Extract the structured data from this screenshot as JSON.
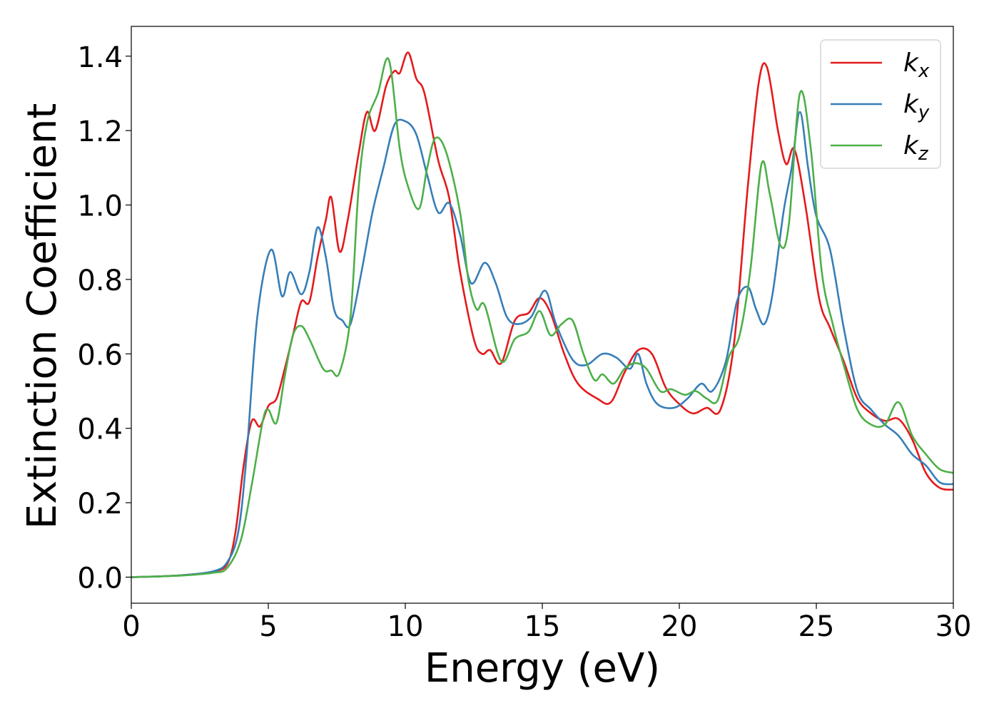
{
  "chart_data": {
    "type": "line",
    "xlabel": "Energy (eV)",
    "ylabel": "Extinction Coefficient",
    "xlim": [
      0,
      30
    ],
    "ylim": [
      -0.07,
      1.48
    ],
    "xticks": [
      0,
      5,
      10,
      15,
      20,
      25,
      30
    ],
    "xtick_labels": [
      "0",
      "5",
      "10",
      "15",
      "20",
      "25",
      "30"
    ],
    "yticks": [
      0.0,
      0.2,
      0.4,
      0.6,
      0.8,
      1.0,
      1.2,
      1.4
    ],
    "ytick_labels": [
      "0.0",
      "0.2",
      "0.4",
      "0.6",
      "0.8",
      "1.0",
      "1.2",
      "1.4"
    ],
    "grid": false,
    "legend_position": "top-right",
    "series": [
      {
        "name": "k",
        "subscript": "x",
        "color": "#e41a1c",
        "points": [
          [
            0,
            0.0
          ],
          [
            1,
            0.002
          ],
          [
            2,
            0.006
          ],
          [
            3,
            0.015
          ],
          [
            3.5,
            0.035
          ],
          [
            3.8,
            0.12
          ],
          [
            4.1,
            0.3
          ],
          [
            4.4,
            0.42
          ],
          [
            4.7,
            0.405
          ],
          [
            5.0,
            0.46
          ],
          [
            5.3,
            0.48
          ],
          [
            5.6,
            0.56
          ],
          [
            5.9,
            0.65
          ],
          [
            6.2,
            0.74
          ],
          [
            6.5,
            0.74
          ],
          [
            6.8,
            0.86
          ],
          [
            7.1,
            0.96
          ],
          [
            7.3,
            1.02
          ],
          [
            7.6,
            0.875
          ],
          [
            7.9,
            0.96
          ],
          [
            8.3,
            1.14
          ],
          [
            8.6,
            1.25
          ],
          [
            8.9,
            1.2
          ],
          [
            9.3,
            1.32
          ],
          [
            9.6,
            1.36
          ],
          [
            9.8,
            1.355
          ],
          [
            10.1,
            1.41
          ],
          [
            10.4,
            1.34
          ],
          [
            10.7,
            1.3
          ],
          [
            11.2,
            1.12
          ],
          [
            11.6,
            1.02
          ],
          [
            12.0,
            0.82
          ],
          [
            12.5,
            0.64
          ],
          [
            12.8,
            0.6
          ],
          [
            13.1,
            0.61
          ],
          [
            13.5,
            0.575
          ],
          [
            14.0,
            0.69
          ],
          [
            14.5,
            0.71
          ],
          [
            14.9,
            0.75
          ],
          [
            15.3,
            0.71
          ],
          [
            15.8,
            0.6
          ],
          [
            16.3,
            0.52
          ],
          [
            17.0,
            0.48
          ],
          [
            17.5,
            0.47
          ],
          [
            18.0,
            0.55
          ],
          [
            18.5,
            0.61
          ],
          [
            19.0,
            0.6
          ],
          [
            19.5,
            0.51
          ],
          [
            20.0,
            0.465
          ],
          [
            20.5,
            0.44
          ],
          [
            21.0,
            0.455
          ],
          [
            21.5,
            0.45
          ],
          [
            22.0,
            0.63
          ],
          [
            22.5,
            1.05
          ],
          [
            22.9,
            1.33
          ],
          [
            23.2,
            1.37
          ],
          [
            23.6,
            1.2
          ],
          [
            23.9,
            1.11
          ],
          [
            24.2,
            1.15
          ],
          [
            24.6,
            1.0
          ],
          [
            25.1,
            0.75
          ],
          [
            25.5,
            0.67
          ],
          [
            26.0,
            0.58
          ],
          [
            26.5,
            0.48
          ],
          [
            27.0,
            0.44
          ],
          [
            27.5,
            0.42
          ],
          [
            28.0,
            0.425
          ],
          [
            28.5,
            0.37
          ],
          [
            29.0,
            0.28
          ],
          [
            29.5,
            0.24
          ],
          [
            30.0,
            0.235
          ]
        ]
      },
      {
        "name": "k",
        "subscript": "y",
        "color": "#377eb8",
        "points": [
          [
            0,
            0.0
          ],
          [
            1,
            0.002
          ],
          [
            2,
            0.006
          ],
          [
            3,
            0.016
          ],
          [
            3.5,
            0.04
          ],
          [
            3.9,
            0.12
          ],
          [
            4.2,
            0.32
          ],
          [
            4.6,
            0.7
          ],
          [
            5.1,
            0.88
          ],
          [
            5.5,
            0.755
          ],
          [
            5.8,
            0.82
          ],
          [
            6.2,
            0.76
          ],
          [
            6.5,
            0.82
          ],
          [
            6.8,
            0.94
          ],
          [
            7.1,
            0.86
          ],
          [
            7.4,
            0.72
          ],
          [
            7.7,
            0.69
          ],
          [
            8.0,
            0.68
          ],
          [
            8.4,
            0.82
          ],
          [
            8.8,
            0.98
          ],
          [
            9.2,
            1.1
          ],
          [
            9.6,
            1.215
          ],
          [
            10.0,
            1.225
          ],
          [
            10.4,
            1.19
          ],
          [
            10.8,
            1.08
          ],
          [
            11.2,
            0.98
          ],
          [
            11.6,
            1.005
          ],
          [
            12.0,
            0.92
          ],
          [
            12.4,
            0.79
          ],
          [
            12.9,
            0.845
          ],
          [
            13.3,
            0.79
          ],
          [
            13.7,
            0.7
          ],
          [
            14.1,
            0.68
          ],
          [
            14.6,
            0.7
          ],
          [
            15.1,
            0.77
          ],
          [
            15.5,
            0.68
          ],
          [
            16.1,
            0.585
          ],
          [
            16.6,
            0.57
          ],
          [
            17.2,
            0.6
          ],
          [
            17.7,
            0.59
          ],
          [
            18.2,
            0.56
          ],
          [
            18.5,
            0.6
          ],
          [
            18.8,
            0.52
          ],
          [
            19.2,
            0.465
          ],
          [
            19.8,
            0.455
          ],
          [
            20.3,
            0.48
          ],
          [
            20.8,
            0.52
          ],
          [
            21.2,
            0.5
          ],
          [
            21.7,
            0.58
          ],
          [
            22.1,
            0.74
          ],
          [
            22.5,
            0.78
          ],
          [
            22.8,
            0.72
          ],
          [
            23.1,
            0.68
          ],
          [
            23.4,
            0.76
          ],
          [
            23.8,
            0.98
          ],
          [
            24.1,
            1.1
          ],
          [
            24.4,
            1.25
          ],
          [
            24.7,
            1.1
          ],
          [
            25.0,
            0.97
          ],
          [
            25.5,
            0.88
          ],
          [
            26.0,
            0.67
          ],
          [
            26.5,
            0.5
          ],
          [
            27.0,
            0.45
          ],
          [
            27.5,
            0.41
          ],
          [
            28.0,
            0.38
          ],
          [
            28.5,
            0.33
          ],
          [
            29.0,
            0.3
          ],
          [
            29.5,
            0.255
          ],
          [
            30.0,
            0.25
          ]
        ]
      },
      {
        "name": "k",
        "subscript": "z",
        "color": "#4daf4a",
        "points": [
          [
            0,
            0.0
          ],
          [
            1,
            0.002
          ],
          [
            2,
            0.005
          ],
          [
            3,
            0.012
          ],
          [
            3.5,
            0.025
          ],
          [
            4.0,
            0.1
          ],
          [
            4.4,
            0.25
          ],
          [
            4.8,
            0.42
          ],
          [
            5.0,
            0.45
          ],
          [
            5.3,
            0.415
          ],
          [
            5.6,
            0.54
          ],
          [
            5.9,
            0.65
          ],
          [
            6.2,
            0.675
          ],
          [
            6.5,
            0.64
          ],
          [
            7.0,
            0.56
          ],
          [
            7.3,
            0.555
          ],
          [
            7.6,
            0.55
          ],
          [
            8.0,
            0.7
          ],
          [
            8.3,
            1.05
          ],
          [
            8.6,
            1.22
          ],
          [
            9.0,
            1.3
          ],
          [
            9.4,
            1.39
          ],
          [
            9.8,
            1.15
          ],
          [
            10.1,
            1.05
          ],
          [
            10.5,
            0.99
          ],
          [
            10.8,
            1.1
          ],
          [
            11.1,
            1.18
          ],
          [
            11.5,
            1.14
          ],
          [
            12.0,
            0.98
          ],
          [
            12.3,
            0.8
          ],
          [
            12.6,
            0.72
          ],
          [
            12.9,
            0.73
          ],
          [
            13.5,
            0.58
          ],
          [
            14.0,
            0.64
          ],
          [
            14.5,
            0.66
          ],
          [
            14.9,
            0.715
          ],
          [
            15.3,
            0.65
          ],
          [
            15.7,
            0.68
          ],
          [
            16.1,
            0.69
          ],
          [
            16.5,
            0.6
          ],
          [
            16.9,
            0.53
          ],
          [
            17.2,
            0.545
          ],
          [
            17.6,
            0.52
          ],
          [
            18.0,
            0.56
          ],
          [
            18.4,
            0.575
          ],
          [
            18.8,
            0.56
          ],
          [
            19.3,
            0.5
          ],
          [
            19.7,
            0.505
          ],
          [
            20.2,
            0.49
          ],
          [
            20.6,
            0.5
          ],
          [
            21.0,
            0.48
          ],
          [
            21.4,
            0.475
          ],
          [
            21.8,
            0.59
          ],
          [
            22.2,
            0.65
          ],
          [
            22.6,
            0.83
          ],
          [
            23.0,
            1.11
          ],
          [
            23.3,
            1.03
          ],
          [
            23.7,
            0.89
          ],
          [
            24.0,
            0.95
          ],
          [
            24.4,
            1.3
          ],
          [
            24.8,
            1.15
          ],
          [
            25.2,
            0.82
          ],
          [
            25.6,
            0.68
          ],
          [
            26.0,
            0.57
          ],
          [
            26.5,
            0.45
          ],
          [
            27.0,
            0.41
          ],
          [
            27.5,
            0.41
          ],
          [
            28.0,
            0.47
          ],
          [
            28.5,
            0.38
          ],
          [
            29.0,
            0.33
          ],
          [
            29.5,
            0.29
          ],
          [
            30.0,
            0.28
          ]
        ]
      }
    ]
  }
}
